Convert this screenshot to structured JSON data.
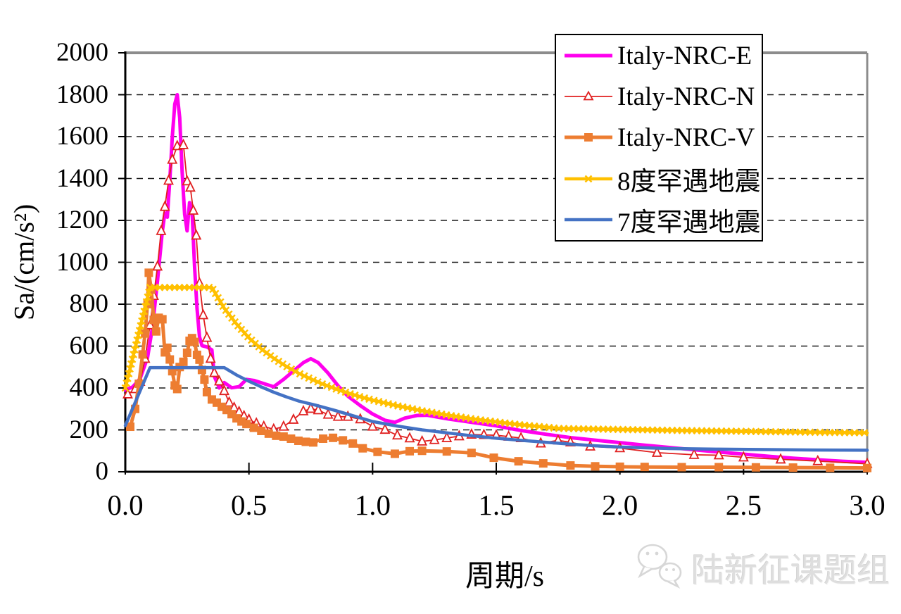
{
  "watermark": {
    "text": "陆新征课题组",
    "icon": "wechat-icon"
  },
  "chart_data": {
    "type": "line",
    "title": "",
    "xlabel": "周期/s",
    "ylabel": "Sa/(cm/s²)",
    "xlim": [
      0,
      3
    ],
    "ylim": [
      0,
      2000
    ],
    "xticks": [
      "0.0",
      "0.5",
      "1.0",
      "1.5",
      "2.0",
      "2.5",
      "3.0"
    ],
    "xtick_values": [
      0,
      0.5,
      1,
      1.5,
      2,
      2.5,
      3
    ],
    "yticks": [
      "0",
      "200",
      "400",
      "600",
      "800",
      "1000",
      "1200",
      "1400",
      "1600",
      "1800",
      "2000"
    ],
    "ytick_values": [
      0,
      200,
      400,
      600,
      800,
      1000,
      1200,
      1400,
      1600,
      1800,
      2000
    ],
    "grid": "horizontal-dashed",
    "grid_color": "#1a1a1a",
    "frame_color": "#8c8c8c",
    "axis_color": "#000000",
    "background": "#ffffff",
    "legend_position": "top-right-inside",
    "series": [
      {
        "name": "Italy-NRC-E",
        "color": "#ff00ee",
        "width": 5,
        "marker": "none",
        "points": [
          [
            0,
            390
          ],
          [
            0.03,
            405
          ],
          [
            0.06,
            445
          ],
          [
            0.09,
            545
          ],
          [
            0.11,
            690
          ],
          [
            0.13,
            910
          ],
          [
            0.15,
            1150
          ],
          [
            0.16,
            1235
          ],
          [
            0.17,
            1215
          ],
          [
            0.18,
            1390
          ],
          [
            0.19,
            1600
          ],
          [
            0.2,
            1755
          ],
          [
            0.21,
            1800
          ],
          [
            0.22,
            1690
          ],
          [
            0.23,
            1430
          ],
          [
            0.24,
            1230
          ],
          [
            0.25,
            1150
          ],
          [
            0.26,
            1285
          ],
          [
            0.27,
            1240
          ],
          [
            0.28,
            980
          ],
          [
            0.29,
            780
          ],
          [
            0.3,
            645
          ],
          [
            0.31,
            602
          ],
          [
            0.33,
            596
          ],
          [
            0.35,
            582
          ],
          [
            0.36,
            455
          ],
          [
            0.38,
            400
          ],
          [
            0.4,
            426
          ],
          [
            0.43,
            401
          ],
          [
            0.46,
            406
          ],
          [
            0.49,
            441
          ],
          [
            0.52,
            436
          ],
          [
            0.56,
            421
          ],
          [
            0.6,
            406
          ],
          [
            0.64,
            441
          ],
          [
            0.68,
            481
          ],
          [
            0.72,
            521
          ],
          [
            0.75,
            540
          ],
          [
            0.78,
            521
          ],
          [
            0.82,
            471
          ],
          [
            0.86,
            411
          ],
          [
            0.9,
            361
          ],
          [
            0.95,
            316
          ],
          [
            1,
            276
          ],
          [
            1.05,
            246
          ],
          [
            1.09,
            236
          ],
          [
            1.13,
            256
          ],
          [
            1.18,
            269
          ],
          [
            1.22,
            270
          ],
          [
            1.3,
            253
          ],
          [
            1.4,
            236
          ],
          [
            1.5,
            219
          ],
          [
            1.6,
            197
          ],
          [
            1.7,
            179
          ],
          [
            1.8,
            163
          ],
          [
            1.9,
            151
          ],
          [
            2,
            139
          ],
          [
            2.1,
            127
          ],
          [
            2.2,
            116
          ],
          [
            2.3,
            105
          ],
          [
            2.4,
            94
          ],
          [
            2.5,
            84
          ],
          [
            2.6,
            74
          ],
          [
            2.7,
            65
          ],
          [
            2.8,
            57
          ],
          [
            2.9,
            50
          ],
          [
            3,
            45
          ]
        ]
      },
      {
        "name": "Italy-NRC-N",
        "color": "#e02020",
        "width": 1.8,
        "marker": "triangle-open",
        "points": [
          [
            0.01,
            370
          ],
          [
            0.04,
            395
          ],
          [
            0.06,
            430
          ],
          [
            0.08,
            540
          ],
          [
            0.1,
            700
          ],
          [
            0.115,
            840
          ],
          [
            0.13,
            980
          ],
          [
            0.145,
            1150
          ],
          [
            0.16,
            1265
          ],
          [
            0.175,
            1390
          ],
          [
            0.19,
            1490
          ],
          [
            0.21,
            1555
          ],
          [
            0.235,
            1560
          ],
          [
            0.25,
            1387
          ],
          [
            0.263,
            1357
          ],
          [
            0.275,
            1247
          ],
          [
            0.287,
            1128
          ],
          [
            0.3,
            900
          ],
          [
            0.315,
            748
          ],
          [
            0.33,
            640
          ],
          [
            0.345,
            540
          ],
          [
            0.36,
            472
          ],
          [
            0.38,
            432
          ],
          [
            0.4,
            386
          ],
          [
            0.42,
            331
          ],
          [
            0.44,
            306
          ],
          [
            0.46,
            286
          ],
          [
            0.48,
            266
          ],
          [
            0.5,
            249
          ],
          [
            0.53,
            231
          ],
          [
            0.56,
            216
          ],
          [
            0.6,
            203
          ],
          [
            0.64,
            216
          ],
          [
            0.68,
            249
          ],
          [
            0.72,
            289
          ],
          [
            0.75,
            301
          ],
          [
            0.78,
            294
          ],
          [
            0.82,
            273
          ],
          [
            0.86,
            263
          ],
          [
            0.9,
            263
          ],
          [
            0.95,
            251
          ],
          [
            1,
            216
          ],
          [
            1.05,
            201
          ],
          [
            1.1,
            174
          ],
          [
            1.15,
            160
          ],
          [
            1.2,
            145
          ],
          [
            1.25,
            152
          ],
          [
            1.3,
            161
          ],
          [
            1.35,
            170
          ],
          [
            1.4,
            178
          ],
          [
            1.45,
            176
          ],
          [
            1.5,
            174
          ],
          [
            1.55,
            168
          ],
          [
            1.6,
            161
          ],
          [
            1.68,
            136
          ],
          [
            1.75,
            150
          ],
          [
            1.8,
            141
          ],
          [
            1.88,
            121
          ],
          [
            2,
            113
          ],
          [
            2.15,
            91
          ],
          [
            2.3,
            81
          ],
          [
            2.4,
            79
          ],
          [
            2.5,
            69
          ],
          [
            2.65,
            59
          ],
          [
            2.8,
            51
          ],
          [
            3,
            38
          ]
        ]
      },
      {
        "name": "Italy-NRC-V",
        "color": "#ed7d31",
        "width": 5,
        "marker": "square",
        "points": [
          [
            0.02,
            215
          ],
          [
            0.04,
            300
          ],
          [
            0.055,
            420
          ],
          [
            0.07,
            560
          ],
          [
            0.08,
            660
          ],
          [
            0.09,
            800
          ],
          [
            0.095,
            950
          ],
          [
            0.105,
            870
          ],
          [
            0.115,
            725
          ],
          [
            0.125,
            670
          ],
          [
            0.135,
            735
          ],
          [
            0.15,
            728
          ],
          [
            0.16,
            570
          ],
          [
            0.17,
            592
          ],
          [
            0.18,
            536
          ],
          [
            0.19,
            480
          ],
          [
            0.2,
            412
          ],
          [
            0.21,
            395
          ],
          [
            0.22,
            500
          ],
          [
            0.235,
            525
          ],
          [
            0.25,
            568
          ],
          [
            0.26,
            625
          ],
          [
            0.27,
            638
          ],
          [
            0.28,
            620
          ],
          [
            0.29,
            558
          ],
          [
            0.3,
            535
          ],
          [
            0.31,
            486
          ],
          [
            0.32,
            440
          ],
          [
            0.33,
            380
          ],
          [
            0.35,
            345
          ],
          [
            0.37,
            330
          ],
          [
            0.39,
            310
          ],
          [
            0.41,
            295
          ],
          [
            0.43,
            275
          ],
          [
            0.45,
            255
          ],
          [
            0.47,
            240
          ],
          [
            0.49,
            228
          ],
          [
            0.52,
            210
          ],
          [
            0.55,
            195
          ],
          [
            0.58,
            182
          ],
          [
            0.61,
            172
          ],
          [
            0.64,
            168
          ],
          [
            0.67,
            158
          ],
          [
            0.7,
            148
          ],
          [
            0.73,
            143
          ],
          [
            0.76,
            140
          ],
          [
            0.8,
            158
          ],
          [
            0.84,
            162
          ],
          [
            0.88,
            150
          ],
          [
            0.92,
            135
          ],
          [
            0.96,
            112
          ],
          [
            1.02,
            95
          ],
          [
            1.09,
            86
          ],
          [
            1.15,
            98
          ],
          [
            1.2,
            100
          ],
          [
            1.3,
            97
          ],
          [
            1.4,
            90
          ],
          [
            1.49,
            67
          ],
          [
            1.59,
            50
          ],
          [
            1.69,
            40
          ],
          [
            1.8,
            30
          ],
          [
            1.9,
            26
          ],
          [
            2,
            24
          ],
          [
            2.1,
            23
          ],
          [
            2.25,
            22
          ],
          [
            2.4,
            22
          ],
          [
            2.55,
            21
          ],
          [
            2.7,
            20
          ],
          [
            2.85,
            19
          ],
          [
            3,
            18
          ]
        ]
      },
      {
        "name": "8度罕遇地震",
        "color": "#ffc000",
        "width": 4.5,
        "marker": "x",
        "points": [
          [
            0,
            400
          ],
          [
            0.05,
            640
          ],
          [
            0.1,
            880
          ],
          [
            0.35,
            880
          ],
          [
            0.4,
            781
          ],
          [
            0.45,
            705
          ],
          [
            0.5,
            639
          ],
          [
            0.55,
            587
          ],
          [
            0.6,
            542
          ],
          [
            0.65,
            504
          ],
          [
            0.7,
            471
          ],
          [
            0.75,
            443
          ],
          [
            0.8,
            418
          ],
          [
            0.85,
            396
          ],
          [
            0.9,
            376
          ],
          [
            0.95,
            358
          ],
          [
            1,
            342
          ],
          [
            1.1,
            315
          ],
          [
            1.2,
            291
          ],
          [
            1.3,
            271
          ],
          [
            1.4,
            253
          ],
          [
            1.5,
            238
          ],
          [
            1.6,
            224
          ],
          [
            1.7,
            213
          ],
          [
            1.75,
            207
          ],
          [
            2,
            202
          ],
          [
            2.25,
            197
          ],
          [
            2.5,
            193
          ],
          [
            2.75,
            189
          ],
          [
            3,
            186
          ]
        ]
      },
      {
        "name": "7度罕遇地震",
        "color": "#4472c4",
        "width": 4.5,
        "marker": "none",
        "points": [
          [
            0,
            220
          ],
          [
            0.1,
            497
          ],
          [
            0.4,
            497
          ],
          [
            0.45,
            462
          ],
          [
            0.5,
            432
          ],
          [
            0.55,
            405
          ],
          [
            0.6,
            380
          ],
          [
            0.65,
            358
          ],
          [
            0.7,
            338
          ],
          [
            0.77,
            318
          ],
          [
            0.85,
            292
          ],
          [
            0.92,
            268
          ],
          [
            1,
            240
          ],
          [
            1.1,
            218
          ],
          [
            1.2,
            200
          ],
          [
            1.3,
            186
          ],
          [
            1.4,
            172
          ],
          [
            1.5,
            160
          ],
          [
            1.6,
            150
          ],
          [
            1.7,
            141
          ],
          [
            1.8,
            132
          ],
          [
            1.9,
            124
          ],
          [
            2,
            118
          ],
          [
            2.2,
            111
          ],
          [
            2.4,
            108
          ],
          [
            2.6,
            106
          ],
          [
            2.8,
            104
          ],
          [
            3,
            103
          ]
        ]
      }
    ]
  }
}
